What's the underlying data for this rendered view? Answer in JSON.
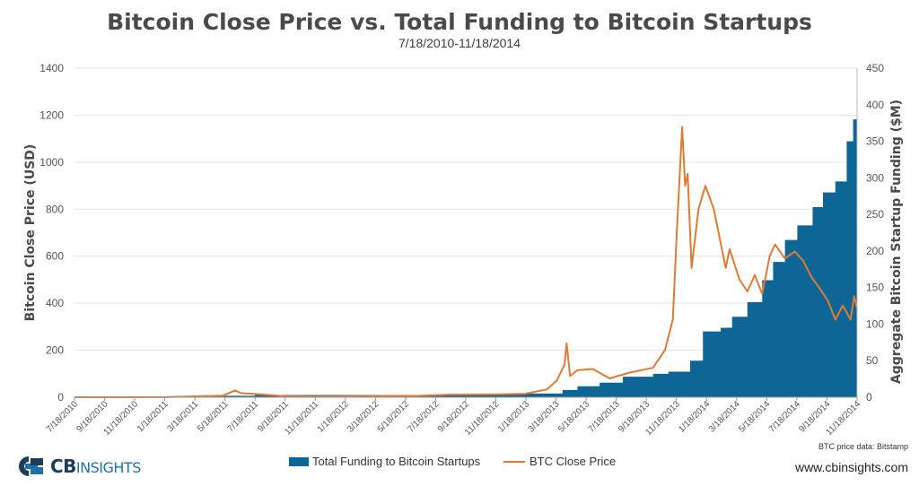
{
  "title": "Bitcoin Close Price vs. Total Funding to Bitcoin Startups",
  "subtitle": "7/18/2010-11/18/2014",
  "footer": {
    "logo_bold": "CB",
    "logo_light": "INSIGHTS",
    "source_note": "BTC price data: Bitstamp",
    "website": "www.cbinsights.com"
  },
  "colors": {
    "funding": "#0e6696",
    "price": "#e07a33",
    "axis_text": "#555555"
  },
  "chart_data": {
    "type": "area",
    "title": "Bitcoin Close Price vs. Total Funding to Bitcoin Startups",
    "subtitle": "7/18/2010-11/18/2014",
    "ylabel": "Bitcoin Close Price (USD)",
    "y2label": "Aggregate Bitcoin Startup Funding ($M)",
    "ylim": [
      0,
      1400
    ],
    "y2lim": [
      0,
      450
    ],
    "yticks": [
      "0",
      "200",
      "400",
      "600",
      "800",
      "1000",
      "1200",
      "1400"
    ],
    "y2ticks": [
      "0",
      "50",
      "100",
      "150",
      "200",
      "250",
      "300",
      "350",
      "400",
      "450"
    ],
    "xticks": [
      "7/18/2010",
      "9/18/2010",
      "11/18/2010",
      "1/18/2011",
      "3/18/2011",
      "5/18/2011",
      "7/18/2011",
      "9/18/2011",
      "11/18/2011",
      "1/18/2012",
      "3/18/2012",
      "5/18/2012",
      "7/18/2012",
      "9/18/2012",
      "11/18/2012",
      "1/18/2013",
      "3/18/2013",
      "5/18/2013",
      "7/18/2013",
      "9/18/2013",
      "11/18/2013",
      "1/18/2014",
      "3/18/2014",
      "5/18/2014",
      "7/18/2014",
      "9/18/2014",
      "11/18/2014"
    ],
    "grid": true,
    "legend_position": "bottom-center",
    "series": [
      {
        "name": "Total Funding to Bitcoin Startups",
        "type": "area-step",
        "axis": "right",
        "x": [
          "2010-07-18",
          "2011-04-25",
          "2011-07-18",
          "2012-02-01",
          "2012-08-01",
          "2012-11-01",
          "2013-01-15",
          "2013-04-01",
          "2013-05-01",
          "2013-06-15",
          "2013-08-01",
          "2013-10-01",
          "2013-11-01",
          "2013-12-15",
          "2014-01-10",
          "2014-02-15",
          "2014-03-10",
          "2014-04-10",
          "2014-05-10",
          "2014-06-01",
          "2014-06-25",
          "2014-07-20",
          "2014-08-20",
          "2014-09-10",
          "2014-10-05",
          "2014-10-28",
          "2014-11-10",
          "2014-11-18"
        ],
        "values": [
          0,
          2,
          3,
          3,
          3,
          4,
          5,
          10,
          15,
          20,
          28,
          32,
          35,
          50,
          90,
          95,
          110,
          130,
          160,
          185,
          215,
          235,
          260,
          280,
          295,
          350,
          380,
          405
        ]
      },
      {
        "name": "BTC Close Price",
        "type": "line",
        "axis": "left",
        "x": [
          "2010-07-18",
          "2011-01-15",
          "2011-05-15",
          "2011-06-08",
          "2011-06-20",
          "2011-07-15",
          "2011-09-15",
          "2011-11-18",
          "2012-03-01",
          "2012-06-15",
          "2012-08-15",
          "2012-11-18",
          "2013-01-15",
          "2013-02-28",
          "2013-03-20",
          "2013-04-05",
          "2013-04-09",
          "2013-04-16",
          "2013-05-01",
          "2013-06-01",
          "2013-07-05",
          "2013-08-15",
          "2013-10-01",
          "2013-10-25",
          "2013-11-10",
          "2013-11-18",
          "2013-11-29",
          "2013-12-05",
          "2013-12-10",
          "2013-12-18",
          "2014-01-01",
          "2014-01-15",
          "2014-02-01",
          "2014-02-25",
          "2014-03-05",
          "2014-03-25",
          "2014-04-10",
          "2014-04-25",
          "2014-05-10",
          "2014-05-25",
          "2014-06-05",
          "2014-06-25",
          "2014-07-15",
          "2014-08-01",
          "2014-08-18",
          "2014-09-01",
          "2014-09-20",
          "2014-10-05",
          "2014-10-20",
          "2014-11-05",
          "2014-11-12",
          "2014-11-18"
        ],
        "values": [
          0.08,
          0.4,
          7,
          29,
          17,
          14,
          5,
          2.5,
          5,
          6,
          11,
          12,
          15,
          33,
          70,
          140,
          230,
          90,
          115,
          120,
          80,
          105,
          125,
          200,
          330,
          700,
          1150,
          900,
          950,
          550,
          800,
          900,
          800,
          550,
          630,
          500,
          450,
          520,
          440,
          600,
          650,
          590,
          620,
          580,
          510,
          470,
          410,
          330,
          390,
          330,
          430,
          380
        ]
      }
    ]
  }
}
